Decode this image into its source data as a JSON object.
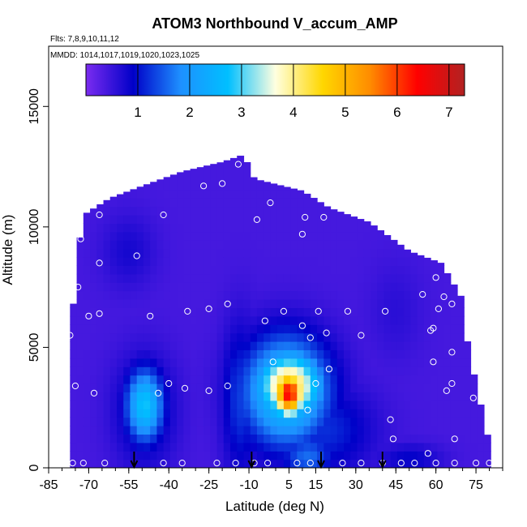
{
  "chart_data": {
    "type": "heatmap",
    "title": "ATOM3 Northbound V_accum_AMP",
    "subtitle_flights": "Flts: 7,8,9,10,11,12",
    "subtitle_dates": "MMDD: 1014,1017,1019,1020,1023,1025",
    "xlabel": "Latitude (deg N)",
    "ylabel": "Altitude (m)",
    "xlim": [
      -85,
      85
    ],
    "ylim": [
      0,
      17500
    ],
    "x_ticks": [
      "-85",
      "-70",
      "-55",
      "-40",
      "-25",
      "-10",
      "5",
      "15",
      "30",
      "45",
      "60",
      "75"
    ],
    "y_ticks": [
      "0",
      "5000",
      "10000",
      "15000"
    ],
    "colorbar": {
      "range": [
        0,
        7.3
      ],
      "ticks": [
        "1",
        "2",
        "3",
        "4",
        "5",
        "6",
        "7"
      ],
      "colors": [
        "#7b2cf0",
        "#0000c8",
        "#1e90ff",
        "#00bfff",
        "#ffffe0",
        "#ffd700",
        "#ff8c00",
        "#ff0000",
        "#b22222"
      ]
    },
    "background_value": 0.4,
    "envelope": [
      [
        -77,
        0
      ],
      [
        -77,
        4000
      ],
      [
        -76,
        6500
      ],
      [
        -74,
        9000
      ],
      [
        -72,
        10500
      ],
      [
        -62,
        11200
      ],
      [
        -50,
        11700
      ],
      [
        -35,
        12300
      ],
      [
        -20,
        12700
      ],
      [
        -12,
        13000
      ],
      [
        -8,
        12000
      ],
      [
        10,
        11500
      ],
      [
        20,
        10800
      ],
      [
        35,
        10200
      ],
      [
        50,
        9000
      ],
      [
        62,
        8500
      ],
      [
        70,
        7000
      ],
      [
        72,
        5000
      ],
      [
        76,
        3000
      ],
      [
        80,
        1000
      ],
      [
        80,
        0
      ]
    ],
    "features": [
      {
        "lat": -49,
        "alt": 2600,
        "value": 2.8,
        "sx": 7,
        "sy": 1500
      },
      {
        "lat": -49,
        "alt": 2400,
        "value": 1.2,
        "sx": 11,
        "sy": 2200
      },
      {
        "lat": -13,
        "alt": 2900,
        "value": 1.3,
        "sx": 7,
        "sy": 3000
      },
      {
        "lat": 5,
        "alt": 3100,
        "value": 6.5,
        "sx": 6,
        "sy": 1000
      },
      {
        "lat": 5,
        "alt": 3400,
        "value": 4.6,
        "sx": 12,
        "sy": 1400
      },
      {
        "lat": 4,
        "alt": 3200,
        "value": 3.0,
        "sx": 16,
        "sy": 2200
      },
      {
        "lat": 18,
        "alt": 1600,
        "value": 1.2,
        "sx": 18,
        "sy": 1800
      },
      {
        "lat": 12,
        "alt": 500,
        "value": 1.6,
        "sx": 10,
        "sy": 900
      },
      {
        "lat": 50,
        "alt": 400,
        "value": 0.9,
        "sx": 12,
        "sy": 600
      },
      {
        "lat": -55,
        "alt": 9000,
        "value": 0.75,
        "sx": 10,
        "sy": 1500
      },
      {
        "lat": 45,
        "alt": 6500,
        "value": 0.6,
        "sx": 10,
        "sy": 2000
      }
    ],
    "observation_points": [
      [
        -77,
        5500
      ],
      [
        -75,
        3400
      ],
      [
        -74,
        7500
      ],
      [
        -73,
        9500
      ],
      [
        -70,
        6300
      ],
      [
        -68,
        3100
      ],
      [
        -66,
        10500
      ],
      [
        -66,
        8500
      ],
      [
        -66,
        6400
      ],
      [
        -52,
        8800
      ],
      [
        -47,
        6300
      ],
      [
        -44,
        3100
      ],
      [
        -42,
        10500
      ],
      [
        -40,
        3500
      ],
      [
        -34,
        3300
      ],
      [
        -33,
        6500
      ],
      [
        -27,
        11700
      ],
      [
        -25,
        6600
      ],
      [
        -25,
        3200
      ],
      [
        -20,
        11800
      ],
      [
        -18,
        6800
      ],
      [
        -18,
        3400
      ],
      [
        -14,
        12600
      ],
      [
        -7,
        10300
      ],
      [
        -4,
        6100
      ],
      [
        -2,
        11000
      ],
      [
        -1,
        4400
      ],
      [
        3,
        6500
      ],
      [
        10,
        9700
      ],
      [
        10,
        5900
      ],
      [
        11,
        10400
      ],
      [
        12,
        2400
      ],
      [
        13,
        5400
      ],
      [
        15,
        3500
      ],
      [
        16,
        6500
      ],
      [
        18,
        10400
      ],
      [
        19,
        5600
      ],
      [
        20,
        4100
      ],
      [
        27,
        6500
      ],
      [
        32,
        5500
      ],
      [
        41,
        6500
      ],
      [
        43,
        2000
      ],
      [
        44,
        1200
      ],
      [
        55,
        7200
      ],
      [
        57,
        600
      ],
      [
        58,
        5700
      ],
      [
        59,
        5800
      ],
      [
        59,
        4400
      ],
      [
        60,
        7900
      ],
      [
        61,
        6600
      ],
      [
        63,
        7100
      ],
      [
        64,
        3200
      ],
      [
        66,
        6800
      ],
      [
        66,
        4800
      ],
      [
        66,
        3500
      ],
      [
        67,
        1200
      ],
      [
        68,
        8400
      ],
      [
        72,
        6700
      ],
      [
        74,
        2900
      ],
      [
        -76,
        200
      ],
      [
        -72,
        200
      ],
      [
        -64,
        200
      ],
      [
        -42,
        200
      ],
      [
        -35,
        200
      ],
      [
        -22,
        200
      ],
      [
        -15,
        200
      ],
      [
        -8,
        200
      ],
      [
        -3,
        200
      ],
      [
        8,
        200
      ],
      [
        13,
        200
      ],
      [
        25,
        200
      ],
      [
        32,
        200
      ],
      [
        40,
        200
      ],
      [
        47,
        200
      ],
      [
        52,
        200
      ],
      [
        60,
        200
      ],
      [
        67,
        200
      ],
      [
        75,
        200
      ],
      [
        80,
        200
      ]
    ],
    "flight_markers_lat": [
      -53,
      -9,
      17,
      40
    ]
  }
}
